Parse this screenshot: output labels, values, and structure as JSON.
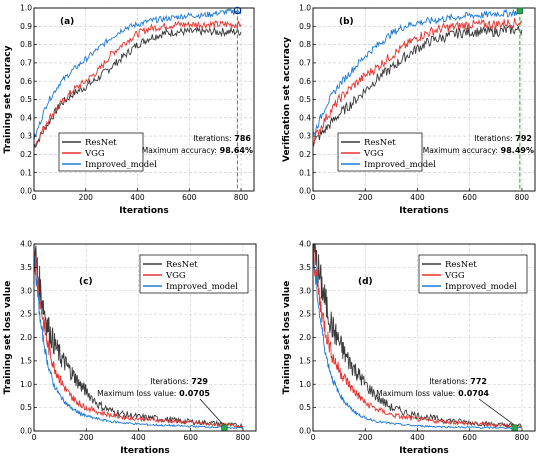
{
  "chart_data": [
    {
      "type": "line",
      "panel_label": "(a)",
      "xlabel": "Iterations",
      "ylabel": "Training set accuracy",
      "xlim": [
        0,
        850
      ],
      "ylim": [
        0.0,
        1.0
      ],
      "xticks": [
        "0",
        "200",
        "400",
        "600",
        "800"
      ],
      "yticks": [
        "0.0",
        "0.1",
        "0.2",
        "0.3",
        "0.4",
        "0.5",
        "0.6",
        "0.7",
        "0.8",
        "0.9",
        "1.0"
      ],
      "legend": {
        "position": "bottom-left",
        "entries": [
          "ResNet",
          "VGG",
          "Improved_model"
        ]
      },
      "colors": {
        "ResNet": "#3a3a3a",
        "VGG": "#e8332f",
        "Improved_model": "#1f7ad6"
      },
      "annotation": {
        "lines": [
          "Iterations: 786",
          "Maximum accuracy: 98.64%"
        ],
        "x": 786,
        "y": 0.9864,
        "marker": "circle"
      },
      "series": [
        {
          "name": "ResNet",
          "x": [
            0,
            50,
            100,
            150,
            200,
            250,
            300,
            350,
            400,
            450,
            500,
            550,
            600,
            650,
            700,
            750,
            800
          ],
          "values": [
            0.24,
            0.36,
            0.47,
            0.53,
            0.57,
            0.62,
            0.68,
            0.74,
            0.8,
            0.84,
            0.86,
            0.87,
            0.87,
            0.87,
            0.87,
            0.87,
            0.87
          ]
        },
        {
          "name": "VGG",
          "x": [
            0,
            50,
            100,
            150,
            200,
            250,
            300,
            350,
            400,
            450,
            500,
            550,
            600,
            650,
            700,
            750,
            800
          ],
          "values": [
            0.24,
            0.38,
            0.47,
            0.55,
            0.6,
            0.66,
            0.75,
            0.81,
            0.86,
            0.89,
            0.9,
            0.91,
            0.91,
            0.91,
            0.91,
            0.91,
            0.91
          ]
        },
        {
          "name": "Improved_model",
          "x": [
            0,
            50,
            100,
            150,
            200,
            250,
            300,
            350,
            400,
            450,
            500,
            550,
            600,
            650,
            700,
            750,
            800
          ],
          "values": [
            0.28,
            0.48,
            0.59,
            0.66,
            0.72,
            0.78,
            0.84,
            0.89,
            0.91,
            0.93,
            0.94,
            0.95,
            0.96,
            0.96,
            0.97,
            0.98,
            0.98
          ]
        }
      ]
    },
    {
      "type": "line",
      "panel_label": "(b)",
      "xlabel": "Iterations",
      "ylabel": "Verification set accuracy",
      "xlim": [
        0,
        850
      ],
      "ylim": [
        0.0,
        1.0
      ],
      "xticks": [
        "0",
        "200",
        "400",
        "600",
        "800"
      ],
      "yticks": [
        "0.0",
        "0.1",
        "0.2",
        "0.3",
        "0.4",
        "0.5",
        "0.6",
        "0.7",
        "0.8",
        "0.9",
        "1.0"
      ],
      "legend": {
        "position": "bottom-left",
        "entries": [
          "ResNet",
          "VGG",
          "Improved_model"
        ]
      },
      "colors": {
        "ResNet": "#3a3a3a",
        "VGG": "#e8332f",
        "Improved_model": "#1f7ad6"
      },
      "annotation": {
        "lines": [
          "Iterations: 792",
          "Maximum accuracy: 98.49%"
        ],
        "x": 792,
        "y": 0.9849,
        "marker": "square"
      },
      "series": [
        {
          "name": "ResNet",
          "x": [
            0,
            50,
            100,
            150,
            200,
            250,
            300,
            350,
            400,
            450,
            500,
            550,
            600,
            650,
            700,
            750,
            800
          ],
          "values": [
            0.26,
            0.34,
            0.42,
            0.48,
            0.55,
            0.62,
            0.67,
            0.73,
            0.78,
            0.82,
            0.84,
            0.86,
            0.87,
            0.87,
            0.87,
            0.88,
            0.88
          ]
        },
        {
          "name": "VGG",
          "x": [
            0,
            50,
            100,
            150,
            200,
            250,
            300,
            350,
            400,
            450,
            500,
            550,
            600,
            650,
            700,
            750,
            800
          ],
          "values": [
            0.27,
            0.4,
            0.5,
            0.57,
            0.63,
            0.68,
            0.74,
            0.79,
            0.84,
            0.87,
            0.89,
            0.9,
            0.91,
            0.91,
            0.91,
            0.92,
            0.92
          ]
        },
        {
          "name": "Improved_model",
          "x": [
            0,
            50,
            100,
            150,
            200,
            250,
            300,
            350,
            400,
            450,
            500,
            550,
            600,
            650,
            700,
            750,
            800
          ],
          "values": [
            0.3,
            0.47,
            0.58,
            0.66,
            0.74,
            0.8,
            0.86,
            0.9,
            0.92,
            0.93,
            0.94,
            0.95,
            0.96,
            0.96,
            0.97,
            0.97,
            0.98
          ]
        }
      ]
    },
    {
      "type": "line",
      "panel_label": "(c)",
      "xlabel": "Iterations",
      "ylabel": "Training set loss value",
      "xlim": [
        0,
        850
      ],
      "ylim": [
        0.0,
        4.0
      ],
      "xticks": [
        "0",
        "200",
        "400",
        "600",
        "800"
      ],
      "yticks": [
        "0.0",
        "0.5",
        "1.0",
        "1.5",
        "2.0",
        "2.5",
        "3.0",
        "3.5",
        "4.0"
      ],
      "legend": {
        "position": "top-right",
        "entries": [
          "ResNet",
          "VGG",
          "Improved_model"
        ]
      },
      "colors": {
        "ResNet": "#3a3a3a",
        "VGG": "#e8332f",
        "Improved_model": "#1f7ad6"
      },
      "annotation": {
        "lines": [
          "Iterations: 729",
          "Maximum loss value: 0.0705"
        ],
        "x": 729,
        "y": 0.0705,
        "marker": "square"
      },
      "series": [
        {
          "name": "ResNet",
          "x": [
            0,
            25,
            50,
            75,
            100,
            125,
            150,
            175,
            200,
            250,
            300,
            350,
            400,
            450,
            500,
            550,
            600,
            650,
            700,
            750,
            800
          ],
          "values": [
            3.9,
            3.0,
            2.3,
            1.9,
            1.6,
            1.4,
            1.2,
            1.0,
            0.85,
            0.55,
            0.42,
            0.35,
            0.3,
            0.28,
            0.25,
            0.22,
            0.2,
            0.18,
            0.16,
            0.13,
            0.11
          ]
        },
        {
          "name": "VGG",
          "x": [
            0,
            25,
            50,
            75,
            100,
            125,
            150,
            175,
            200,
            250,
            300,
            350,
            400,
            450,
            500,
            550,
            600,
            650,
            700,
            750,
            800
          ],
          "values": [
            3.9,
            2.7,
            1.9,
            1.4,
            1.1,
            0.85,
            0.7,
            0.58,
            0.5,
            0.4,
            0.33,
            0.29,
            0.26,
            0.24,
            0.22,
            0.2,
            0.18,
            0.16,
            0.14,
            0.12,
            0.1
          ]
        },
        {
          "name": "Improved_model",
          "x": [
            0,
            25,
            50,
            75,
            100,
            125,
            150,
            175,
            200,
            250,
            300,
            350,
            400,
            450,
            500,
            550,
            600,
            650,
            700,
            750,
            800
          ],
          "values": [
            3.8,
            2.3,
            1.5,
            1.0,
            0.75,
            0.58,
            0.46,
            0.38,
            0.32,
            0.25,
            0.2,
            0.17,
            0.15,
            0.13,
            0.12,
            0.11,
            0.1,
            0.09,
            0.08,
            0.07,
            0.07
          ]
        }
      ]
    },
    {
      "type": "line",
      "panel_label": "(d)",
      "xlabel": "Iterations",
      "ylabel": "Training set loss value",
      "xlim": [
        0,
        850
      ],
      "ylim": [
        0.0,
        4.0
      ],
      "xticks": [
        "0",
        "200",
        "400",
        "600",
        "800"
      ],
      "yticks": [
        "0.0",
        "0.5",
        "1.0",
        "1.5",
        "2.0",
        "2.5",
        "3.0",
        "3.5",
        "4.0"
      ],
      "legend": {
        "position": "top-right",
        "entries": [
          "ResNet",
          "VGG",
          "Improved_model"
        ]
      },
      "colors": {
        "ResNet": "#3a3a3a",
        "VGG": "#e8332f",
        "Improved_model": "#1f7ad6"
      },
      "annotation": {
        "lines": [
          "Iterations: 772",
          "Maximum loss value: 0.0704"
        ],
        "x": 772,
        "y": 0.0704,
        "marker": "square"
      },
      "series": [
        {
          "name": "ResNet",
          "x": [
            0,
            25,
            50,
            75,
            100,
            125,
            150,
            175,
            200,
            250,
            300,
            350,
            400,
            450,
            500,
            550,
            600,
            650,
            700,
            750,
            800
          ],
          "values": [
            3.9,
            3.3,
            2.7,
            2.2,
            1.9,
            1.6,
            1.4,
            1.2,
            1.0,
            0.7,
            0.5,
            0.4,
            0.33,
            0.28,
            0.24,
            0.21,
            0.18,
            0.16,
            0.14,
            0.12,
            0.11
          ]
        },
        {
          "name": "VGG",
          "x": [
            0,
            25,
            50,
            75,
            100,
            125,
            150,
            175,
            200,
            250,
            300,
            350,
            400,
            450,
            500,
            550,
            600,
            650,
            700,
            750,
            800
          ],
          "values": [
            3.9,
            2.8,
            2.1,
            1.6,
            1.3,
            1.1,
            0.9,
            0.75,
            0.6,
            0.45,
            0.35,
            0.29,
            0.25,
            0.22,
            0.2,
            0.18,
            0.16,
            0.15,
            0.13,
            0.12,
            0.1
          ]
        },
        {
          "name": "Improved_model",
          "x": [
            0,
            25,
            50,
            75,
            100,
            125,
            150,
            175,
            200,
            250,
            300,
            350,
            400,
            450,
            500,
            550,
            600,
            650,
            700,
            750,
            800
          ],
          "values": [
            3.8,
            2.5,
            1.6,
            1.1,
            0.8,
            0.6,
            0.45,
            0.35,
            0.28,
            0.2,
            0.16,
            0.13,
            0.11,
            0.1,
            0.09,
            0.08,
            0.08,
            0.07,
            0.07,
            0.07,
            0.07
          ]
        }
      ]
    }
  ]
}
